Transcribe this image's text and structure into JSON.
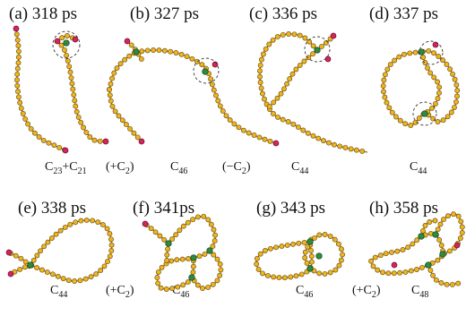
{
  "panels": [
    {
      "id": "a",
      "title": "(a) 318 ps",
      "formula_main": "C",
      "formula_sub": "23",
      "formula_plus": "+C",
      "formula_sub2": "21"
    },
    {
      "id": "b",
      "title": "(b) 327 ps",
      "formula_main": "C",
      "formula_sub": "46"
    },
    {
      "id": "c",
      "title": "(c) 336 ps",
      "formula_main": "C",
      "formula_sub": "44"
    },
    {
      "id": "d",
      "title": "(d) 337 ps",
      "formula_main": "C",
      "formula_sub": "44"
    },
    {
      "id": "e",
      "title": "(e) 338 ps",
      "formula_main": "C",
      "formula_sub": "44"
    },
    {
      "id": "f",
      "title": "(f) 341ps",
      "formula_main": "C",
      "formula_sub": "46"
    },
    {
      "id": "g",
      "title": "(g) 343 ps",
      "formula_main": "C",
      "formula_sub": "46"
    },
    {
      "id": "h",
      "title": "(h) 358 ps",
      "formula_main": "C",
      "formula_sub": "48"
    }
  ],
  "transitions": [
    {
      "id": "a-b",
      "prefix": "(+C",
      "sub": "2",
      "suffix": ")"
    },
    {
      "id": "b-c",
      "prefix": "(−C",
      "sub": "2",
      "suffix": ")"
    },
    {
      "id": "e-f",
      "prefix": "(+C",
      "sub": "2",
      "suffix": ")"
    },
    {
      "id": "g-h",
      "prefix": "(+C",
      "sub": "2",
      "suffix": ")"
    }
  ],
  "colors": {
    "carbon_atom": "#f2b41c",
    "chain_end_atom": "#d5245a",
    "branch_atom": "#2d8a3e"
  }
}
